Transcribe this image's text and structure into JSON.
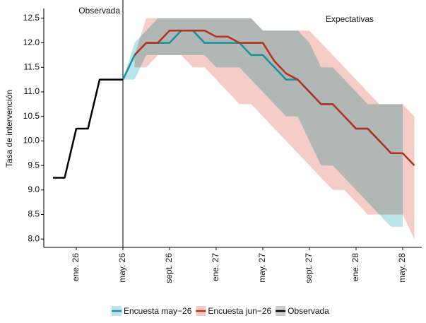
{
  "chart_data": {
    "type": "line",
    "y_label": "Tasa de intervención",
    "annotations": [
      "Observada",
      "Expectativas"
    ],
    "categories": [
      null,
      null,
      "ene. 26",
      null,
      null,
      null,
      "may. 26",
      null,
      null,
      null,
      "sept. 26",
      null,
      null,
      null,
      "ene. 27",
      null,
      null,
      null,
      "may. 27",
      null,
      null,
      null,
      "sept. 27",
      null,
      null,
      null,
      "ene. 28",
      null,
      null,
      null,
      "may. 28",
      null
    ],
    "ylim": [
      7.83,
      12.7
    ],
    "yticks": [
      {
        "value": 8,
        "label": "8.0"
      },
      {
        "value": 8.5,
        "label": "8.5"
      },
      {
        "value": 9,
        "label": "9.0"
      },
      {
        "value": 9.5,
        "label": "9.5"
      },
      {
        "value": 10,
        "label": "10.0"
      },
      {
        "value": 10.5,
        "label": "10.5"
      },
      {
        "value": 11,
        "label": "11.0"
      },
      {
        "value": 11.5,
        "label": "11.5"
      },
      {
        "value": 12,
        "label": "12.0"
      },
      {
        "value": 12.5,
        "label": "12.5"
      }
    ],
    "series": [
      {
        "name": "Encuesta may−26",
        "color": "#1b8fa0",
        "band_color": "#b9e4ea",
        "values": [
          null,
          null,
          null,
          null,
          null,
          null,
          11.25,
          11.75,
          12.0,
          12.0,
          12.0,
          12.25,
          12.25,
          12.0,
          12.0,
          12.0,
          12.0,
          11.75,
          11.75,
          11.5,
          11.25,
          11.25,
          11.0,
          10.75,
          10.75,
          10.5,
          10.25,
          10.25,
          10.0,
          9.75,
          9.75,
          null
        ],
        "upper": [
          null,
          null,
          null,
          null,
          null,
          null,
          11.25,
          12.0,
          12.25,
          12.5,
          12.5,
          12.5,
          12.5,
          12.5,
          12.5,
          12.5,
          12.5,
          12.5,
          12.25,
          12.25,
          12.25,
          12.25,
          12.0,
          11.5,
          11.5,
          11.25,
          11.0,
          10.75,
          10.75,
          10.75,
          10.75,
          null
        ],
        "lower": [
          null,
          null,
          null,
          null,
          null,
          null,
          11.25,
          11.25,
          11.75,
          11.75,
          11.75,
          11.75,
          11.75,
          11.75,
          11.5,
          11.5,
          11.5,
          11.25,
          11.0,
          10.75,
          10.5,
          10.5,
          10.0,
          9.5,
          9.5,
          9.25,
          9.0,
          8.75,
          8.5,
          8.25,
          8.25,
          null
        ]
      },
      {
        "name": "Encuesta jun−26",
        "color": "#b5301d",
        "band_color": "#f3cdc6",
        "values": [
          null,
          null,
          null,
          null,
          null,
          null,
          null,
          11.75,
          12.0,
          12.0,
          12.25,
          12.25,
          12.25,
          12.25,
          12.125,
          12.125,
          12.0,
          12.0,
          12.0,
          11.625,
          11.375,
          11.25,
          11.0,
          10.75,
          10.75,
          10.5,
          10.25,
          10.25,
          10.0,
          9.75,
          9.75,
          9.5
        ],
        "upper": [
          null,
          null,
          null,
          null,
          null,
          null,
          null,
          11.75,
          12.5,
          12.5,
          12.5,
          12.5,
          12.5,
          12.5,
          12.5,
          12.5,
          12.5,
          12.5,
          12.25,
          12.25,
          12.25,
          12.25,
          12.25,
          12.0,
          11.75,
          11.5,
          11.25,
          11.0,
          10.75,
          10.75,
          10.75,
          10.5
        ],
        "lower": [
          null,
          null,
          null,
          null,
          null,
          null,
          null,
          11.5,
          11.5,
          11.75,
          11.75,
          11.75,
          11.5,
          11.5,
          11.25,
          11.0,
          10.75,
          10.75,
          10.5,
          10.25,
          10.0,
          9.75,
          9.5,
          9.25,
          9.0,
          9.0,
          8.75,
          8.5,
          8.5,
          8.5,
          8.5,
          8.0
        ]
      },
      {
        "name": "Observada",
        "color": "#000000",
        "values": [
          9.25,
          9.25,
          10.25,
          10.25,
          11.25,
          11.25,
          11.25,
          null,
          null,
          null,
          null,
          null,
          null,
          null,
          null,
          null,
          null,
          null,
          null,
          null,
          null,
          null,
          null,
          null,
          null,
          null,
          null,
          null,
          null,
          null,
          null,
          null
        ]
      }
    ]
  }
}
